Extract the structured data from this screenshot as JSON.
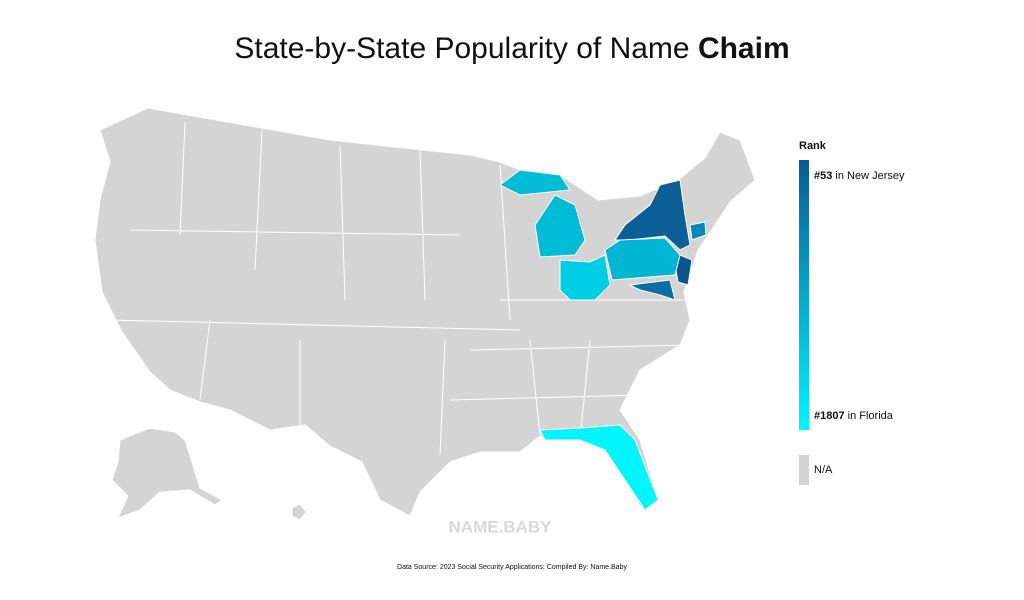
{
  "title": {
    "prefix": "State-by-State Popularity of Name",
    "name": "Chaim"
  },
  "legend": {
    "title": "Rank",
    "top": {
      "rank": "#53",
      "place": "in New Jersey"
    },
    "bottom": {
      "rank": "#1807",
      "place": "in Florida"
    },
    "gradient": [
      "#0b5a94",
      "#00f4ff"
    ],
    "na": {
      "label": "N/A",
      "color": "#d4d4d4"
    }
  },
  "map": {
    "base_color": "#d4d4d4",
    "regions": [
      {
        "color": "#0b5e96"
      },
      {
        "color": "#0a5490"
      },
      {
        "color": "#00b6d2"
      },
      {
        "color": "#00cde6"
      },
      {
        "color": "#00bcd6"
      },
      {
        "color": "#00bcd6"
      },
      {
        "color": "#0a6ea8"
      },
      {
        "color": "#0a88b8"
      },
      {
        "color": "#00f6ff"
      }
    ]
  },
  "watermark": "NAME.BABY",
  "source": "Data Source: 2023 Social Security Applications; Compiled By: Name.Baby"
}
